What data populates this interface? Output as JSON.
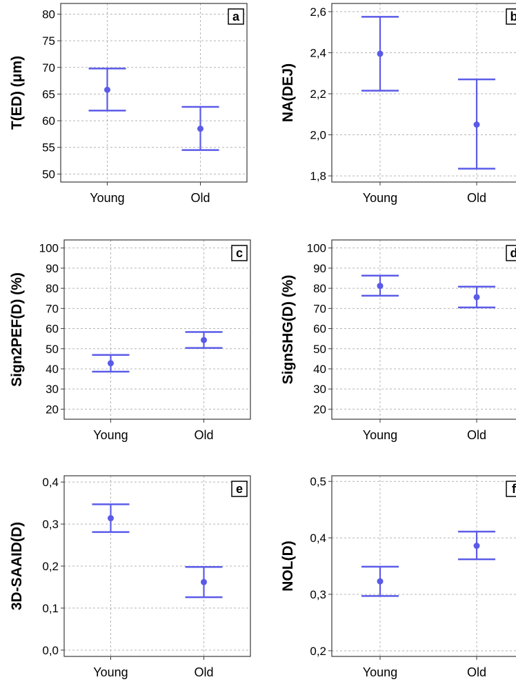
{
  "colors": {
    "errorbar": "#5A5AE8",
    "grid": "#b4b4b4",
    "frame": "#3a3a3a"
  },
  "chart_data": [
    {
      "panel": "a",
      "type": "errorbar",
      "ylabel": "T(ED) (μm)",
      "categories": [
        "Young",
        "Old"
      ],
      "ylim": [
        48.5,
        82
      ],
      "yticks": [
        50,
        55,
        60,
        65,
        70,
        75,
        80
      ],
      "ytick_labels": [
        "50",
        "55",
        "60",
        "65",
        "70",
        "75",
        "80"
      ],
      "series": [
        {
          "mean": [
            65.8,
            58.5
          ],
          "lower": [
            61.9,
            54.5
          ],
          "upper": [
            69.8,
            62.6
          ]
        }
      ],
      "grid": true
    },
    {
      "panel": "b",
      "type": "errorbar",
      "ylabel": "NA(DEJ)",
      "categories": [
        "Young",
        "Old"
      ],
      "ylim": [
        1.77,
        2.64
      ],
      "yticks": [
        1.8,
        2.0,
        2.2,
        2.4,
        2.6
      ],
      "ytick_labels": [
        "1,8",
        "2,0",
        "2,2",
        "2,4",
        "2,6"
      ],
      "series": [
        {
          "mean": [
            2.395,
            2.05
          ],
          "lower": [
            2.215,
            1.835
          ],
          "upper": [
            2.575,
            2.27
          ]
        }
      ],
      "grid": true
    },
    {
      "panel": "c",
      "type": "errorbar",
      "ylabel": "Sign2PEF(D) (%)",
      "categories": [
        "Young",
        "Old"
      ],
      "ylim": [
        15,
        104
      ],
      "yticks": [
        20,
        30,
        40,
        50,
        60,
        70,
        80,
        90,
        100
      ],
      "ytick_labels": [
        "20",
        "30",
        "40",
        "50",
        "60",
        "70",
        "80",
        "90",
        "100"
      ],
      "series": [
        {
          "mean": [
            42.8,
            54.3
          ],
          "lower": [
            38.6,
            50.4
          ],
          "upper": [
            46.9,
            58.3
          ]
        }
      ],
      "grid": true
    },
    {
      "panel": "d",
      "type": "errorbar",
      "ylabel": "SignSHG(D) (%)",
      "categories": [
        "Young",
        "Old"
      ],
      "ylim": [
        15,
        104
      ],
      "yticks": [
        20,
        30,
        40,
        50,
        60,
        70,
        80,
        90,
        100
      ],
      "ytick_labels": [
        "20",
        "30",
        "40",
        "50",
        "60",
        "70",
        "80",
        "90",
        "100"
      ],
      "series": [
        {
          "mean": [
            81.2,
            75.6
          ],
          "lower": [
            76.3,
            70.5
          ],
          "upper": [
            86.3,
            80.8
          ]
        }
      ],
      "grid": true
    },
    {
      "panel": "e",
      "type": "errorbar",
      "ylabel": "3D-SAAID(D)",
      "categories": [
        "Young",
        "Old"
      ],
      "ylim": [
        -0.015,
        0.415
      ],
      "yticks": [
        0.0,
        0.1,
        0.2,
        0.3,
        0.4
      ],
      "ytick_labels": [
        "0,0",
        "0,1",
        "0,2",
        "0,3",
        "0,4"
      ],
      "series": [
        {
          "mean": [
            0.314,
            0.162
          ],
          "lower": [
            0.281,
            0.126
          ],
          "upper": [
            0.347,
            0.198
          ]
        }
      ],
      "grid": true
    },
    {
      "panel": "f",
      "type": "errorbar",
      "ylabel": "NOL(D)",
      "categories": [
        "Young",
        "Old"
      ],
      "ylim": [
        0.19,
        0.51
      ],
      "yticks": [
        0.2,
        0.3,
        0.4,
        0.5
      ],
      "ytick_labels": [
        "0,2",
        "0,3",
        "0,4",
        "0,5"
      ],
      "series": [
        {
          "mean": [
            0.323,
            0.386
          ],
          "lower": [
            0.297,
            0.362
          ],
          "upper": [
            0.349,
            0.411
          ]
        }
      ],
      "grid": true
    }
  ]
}
